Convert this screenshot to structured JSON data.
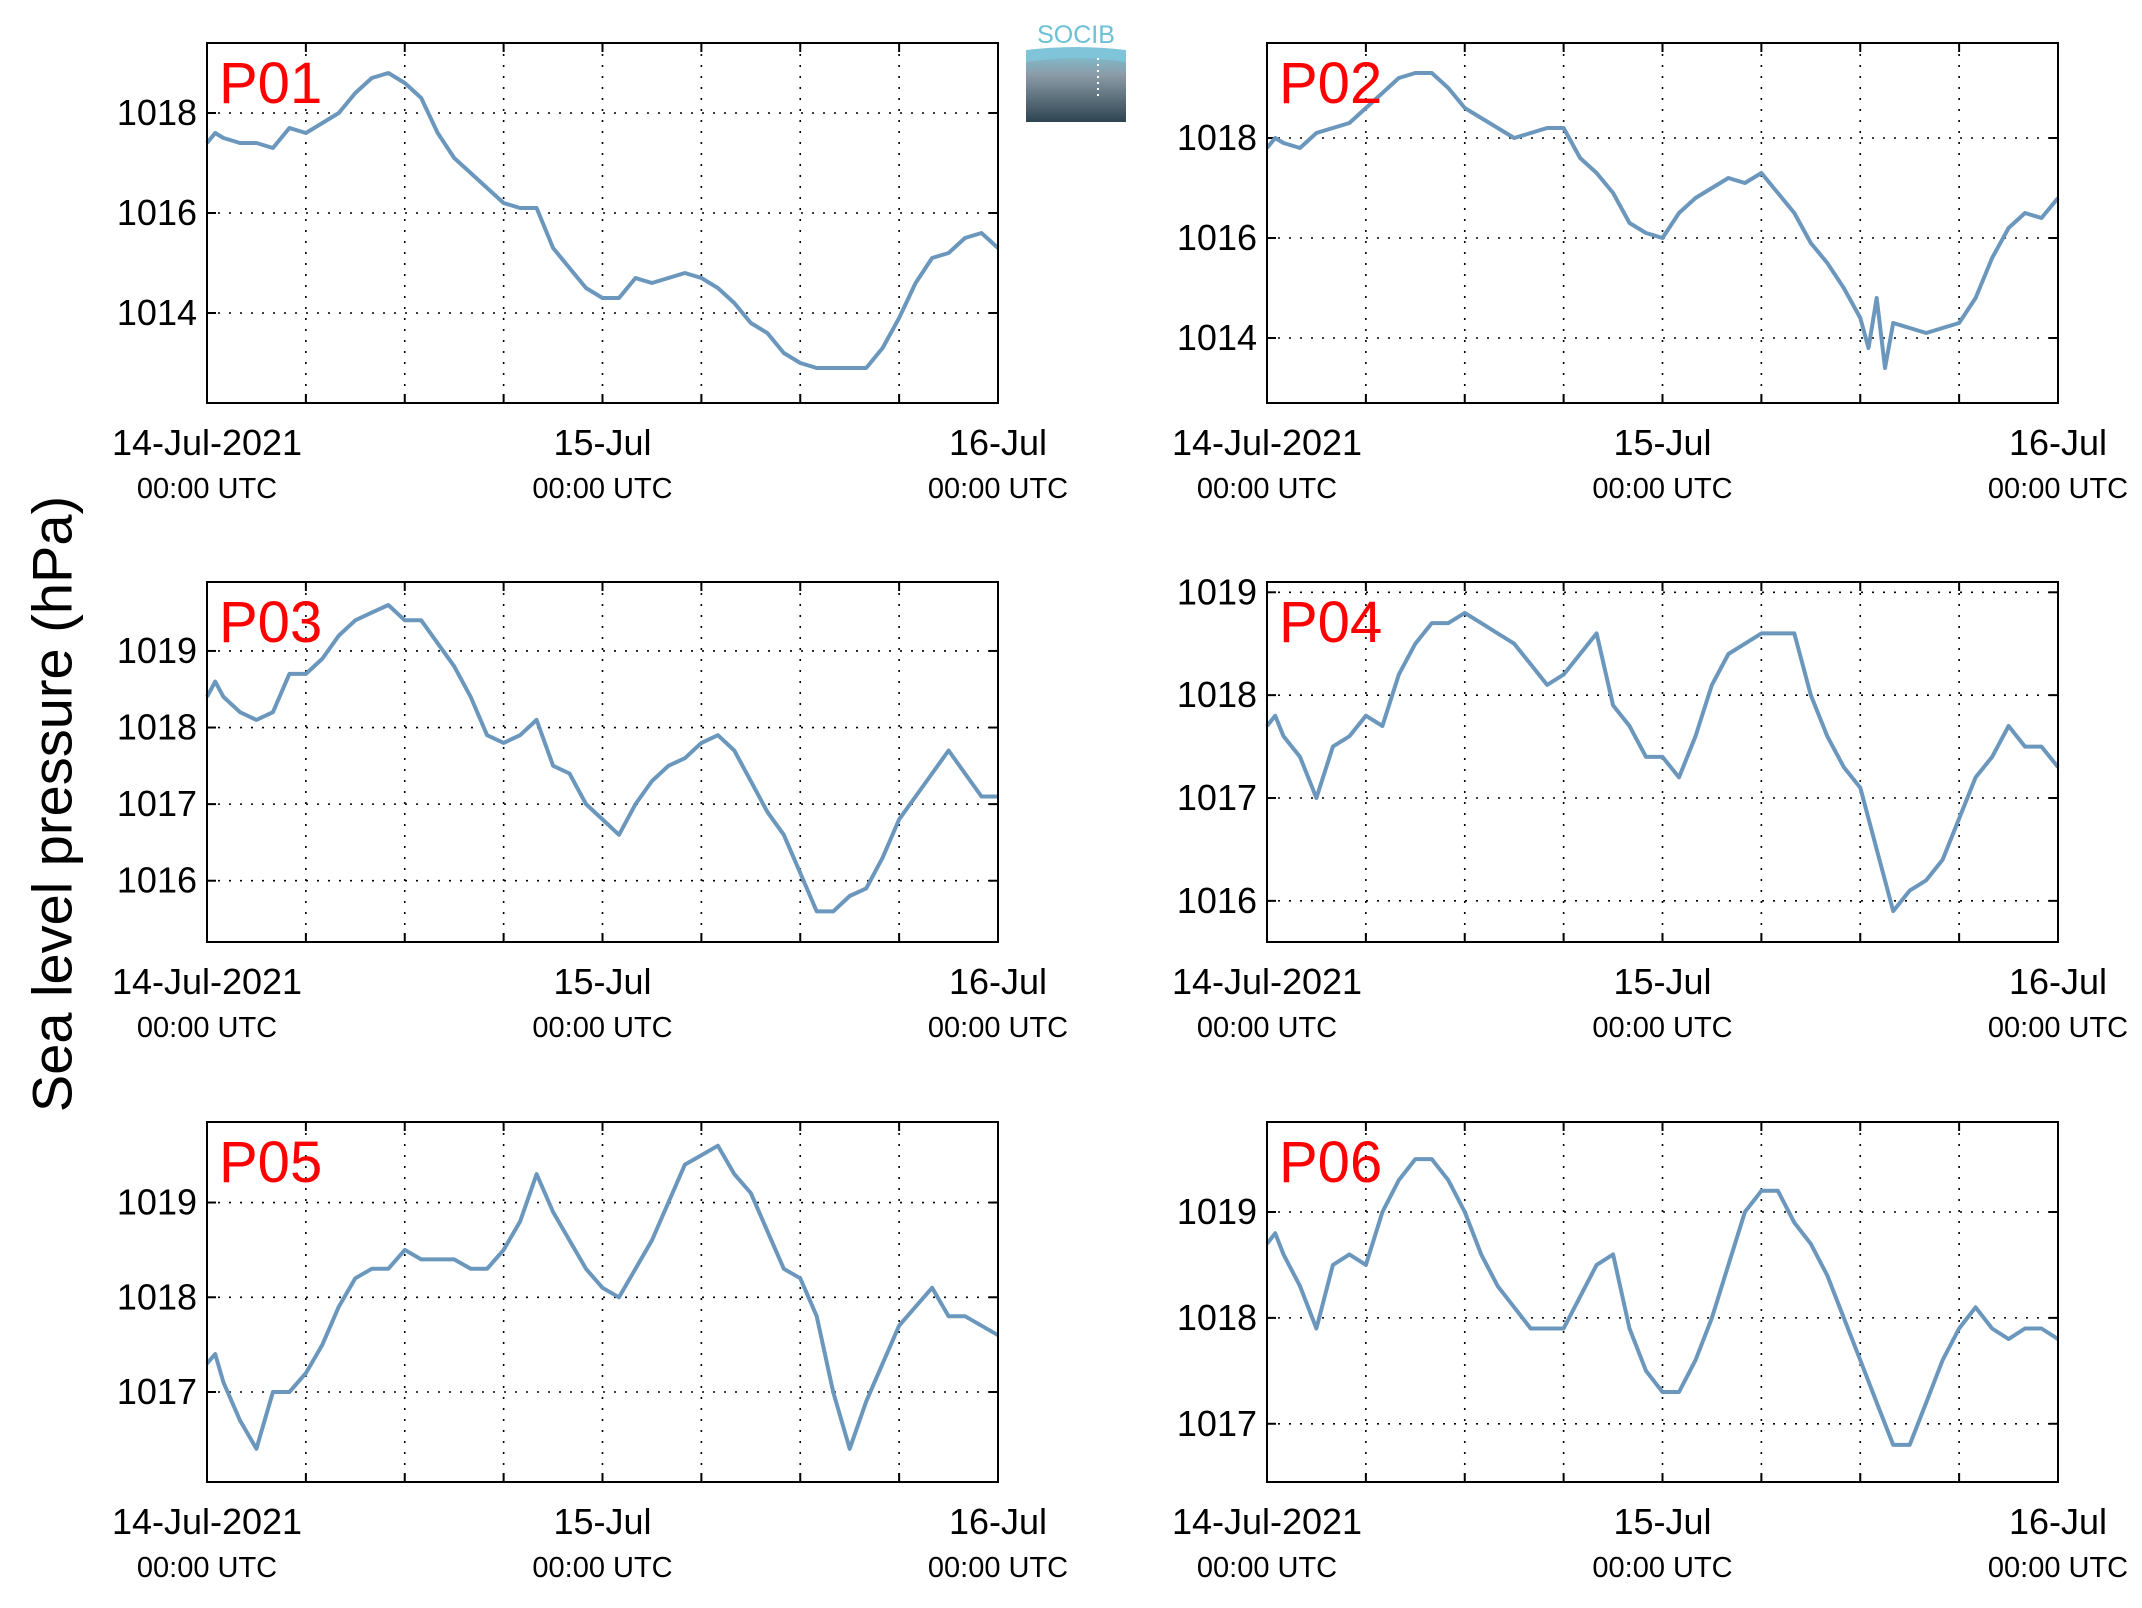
{
  "ylabel": "Sea level pressure (hPa)",
  "logo": {
    "text": "SOCIB",
    "colors": {
      "top": "#7fc4d8",
      "bottom": "#2e4451"
    }
  },
  "colors": {
    "line": "#6b97bd",
    "label": "#ff0000"
  },
  "chart_data": [
    {
      "type": "line",
      "title": "P01",
      "x_tick_labels": [
        [
          "14-Jul-2021",
          "00:00 UTC"
        ],
        [
          "15-Jul",
          "00:00 UTC"
        ],
        [
          "16-Jul",
          "00:00 UTC"
        ]
      ],
      "xlim_hours": [
        0,
        48
      ],
      "ylim": [
        1012.2,
        1019.4
      ],
      "yticks": [
        1014,
        1016,
        1018
      ],
      "grid": true,
      "series": [
        {
          "x_hours": [
            0,
            0.5,
            1,
            2,
            3,
            4,
            5,
            6,
            7,
            8,
            9,
            10,
            11,
            12,
            13,
            14,
            15,
            16,
            17,
            18,
            19,
            20,
            21,
            22,
            23,
            24,
            25,
            26,
            27,
            28,
            29,
            30,
            31,
            32,
            33,
            34,
            35,
            36,
            37,
            38,
            39,
            40,
            41,
            42,
            43,
            44,
            45,
            46,
            47,
            48
          ],
          "y": [
            1017.4,
            1017.6,
            1017.5,
            1017.4,
            1017.4,
            1017.3,
            1017.7,
            1017.6,
            1017.8,
            1018.0,
            1018.4,
            1018.7,
            1018.8,
            1018.6,
            1018.3,
            1017.6,
            1017.1,
            1016.8,
            1016.5,
            1016.2,
            1016.1,
            1016.1,
            1015.3,
            1014.9,
            1014.5,
            1014.3,
            1014.3,
            1014.7,
            1014.6,
            1014.7,
            1014.8,
            1014.7,
            1014.5,
            1014.2,
            1013.8,
            1013.6,
            1013.2,
            1013.0,
            1012.9,
            1012.9,
            1012.9,
            1012.9,
            1013.3,
            1013.9,
            1014.6,
            1015.1,
            1015.2,
            1015.5,
            1015.6,
            1015.3
          ]
        }
      ]
    },
    {
      "type": "line",
      "title": "P02",
      "x_tick_labels": [
        [
          "14-Jul-2021",
          "00:00 UTC"
        ],
        [
          "15-Jul",
          "00:00 UTC"
        ],
        [
          "16-Jul",
          "00:00 UTC"
        ]
      ],
      "xlim_hours": [
        0,
        48
      ],
      "ylim": [
        1012.7,
        1019.9
      ],
      "yticks": [
        1014,
        1016,
        1018
      ],
      "grid": true,
      "series": [
        {
          "x_hours": [
            0,
            0.5,
            1,
            2,
            3,
            4,
            5,
            6,
            7,
            8,
            9,
            10,
            11,
            12,
            13,
            14,
            15,
            16,
            17,
            18,
            19,
            20,
            21,
            22,
            23,
            24,
            25,
            26,
            27,
            28,
            29,
            30,
            31,
            32,
            33,
            34,
            35,
            36,
            36.5,
            37,
            37.5,
            38,
            39,
            40,
            41,
            42,
            43,
            44,
            45,
            46,
            47,
            48
          ],
          "y": [
            1017.8,
            1018.0,
            1017.9,
            1017.8,
            1018.1,
            1018.2,
            1018.3,
            1018.6,
            1018.9,
            1019.2,
            1019.3,
            1019.3,
            1019.0,
            1018.6,
            1018.4,
            1018.2,
            1018.0,
            1018.1,
            1018.2,
            1018.2,
            1017.6,
            1017.3,
            1016.9,
            1016.3,
            1016.1,
            1016.0,
            1016.5,
            1016.8,
            1017.0,
            1017.2,
            1017.1,
            1017.3,
            1016.9,
            1016.5,
            1015.9,
            1015.5,
            1015.0,
            1014.4,
            1013.8,
            1014.8,
            1013.4,
            1014.3,
            1014.2,
            1014.1,
            1014.2,
            1014.3,
            1014.8,
            1015.6,
            1016.2,
            1016.5,
            1016.4,
            1016.8
          ]
        }
      ]
    },
    {
      "type": "line",
      "title": "P03",
      "x_tick_labels": [
        [
          "14-Jul-2021",
          "00:00 UTC"
        ],
        [
          "15-Jul",
          "00:00 UTC"
        ],
        [
          "16-Jul",
          "00:00 UTC"
        ]
      ],
      "xlim_hours": [
        0,
        48
      ],
      "ylim": [
        1015.2,
        1019.9
      ],
      "yticks": [
        1016,
        1017,
        1018,
        1019
      ],
      "grid": true,
      "series": [
        {
          "x_hours": [
            0,
            0.5,
            1,
            2,
            3,
            4,
            5,
            6,
            7,
            8,
            9,
            10,
            11,
            12,
            13,
            14,
            15,
            16,
            17,
            18,
            19,
            20,
            21,
            22,
            23,
            24,
            25,
            26,
            27,
            28,
            29,
            30,
            31,
            32,
            33,
            34,
            35,
            36,
            37,
            38,
            39,
            40,
            41,
            42,
            43,
            44,
            45,
            46,
            47,
            48
          ],
          "y": [
            1018.4,
            1018.6,
            1018.4,
            1018.2,
            1018.1,
            1018.2,
            1018.7,
            1018.7,
            1018.9,
            1019.2,
            1019.4,
            1019.5,
            1019.6,
            1019.4,
            1019.4,
            1019.1,
            1018.8,
            1018.4,
            1017.9,
            1017.8,
            1017.9,
            1018.1,
            1017.5,
            1017.4,
            1017.0,
            1016.8,
            1016.6,
            1017.0,
            1017.3,
            1017.5,
            1017.6,
            1017.8,
            1017.9,
            1017.7,
            1017.3,
            1016.9,
            1016.6,
            1016.1,
            1015.6,
            1015.6,
            1015.8,
            1015.9,
            1016.3,
            1016.8,
            1017.1,
            1017.4,
            1017.7,
            1017.4,
            1017.1,
            1017.1
          ]
        }
      ]
    },
    {
      "type": "line",
      "title": "P04",
      "x_tick_labels": [
        [
          "14-Jul-2021",
          "00:00 UTC"
        ],
        [
          "15-Jul",
          "00:00 UTC"
        ],
        [
          "16-Jul",
          "00:00 UTC"
        ]
      ],
      "xlim_hours": [
        0,
        48
      ],
      "ylim": [
        1015.6,
        1019.1
      ],
      "yticks": [
        1016,
        1017,
        1018,
        1019
      ],
      "grid": true,
      "series": [
        {
          "x_hours": [
            0,
            0.5,
            1,
            2,
            3,
            4,
            5,
            6,
            7,
            8,
            9,
            10,
            11,
            12,
            13,
            14,
            15,
            16,
            17,
            18,
            19,
            20,
            21,
            22,
            23,
            24,
            25,
            26,
            27,
            28,
            29,
            30,
            31,
            32,
            33,
            34,
            35,
            36,
            37,
            38,
            39,
            40,
            41,
            42,
            43,
            44,
            45,
            46,
            47,
            48
          ],
          "y": [
            1017.7,
            1017.8,
            1017.6,
            1017.4,
            1017.0,
            1017.5,
            1017.6,
            1017.8,
            1017.7,
            1018.2,
            1018.5,
            1018.7,
            1018.7,
            1018.8,
            1018.7,
            1018.6,
            1018.5,
            1018.3,
            1018.1,
            1018.2,
            1018.4,
            1018.6,
            1017.9,
            1017.7,
            1017.4,
            1017.4,
            1017.2,
            1017.6,
            1018.1,
            1018.4,
            1018.5,
            1018.6,
            1018.6,
            1018.6,
            1018.0,
            1017.6,
            1017.3,
            1017.1,
            1016.5,
            1015.9,
            1016.1,
            1016.2,
            1016.4,
            1016.8,
            1017.2,
            1017.4,
            1017.7,
            1017.5,
            1017.5,
            1017.3
          ]
        }
      ]
    },
    {
      "type": "line",
      "title": "P05",
      "x_tick_labels": [
        [
          "14-Jul-2021",
          "00:00 UTC"
        ],
        [
          "15-Jul",
          "00:00 UTC"
        ],
        [
          "16-Jul",
          "00:00 UTC"
        ]
      ],
      "xlim_hours": [
        0,
        48
      ],
      "ylim": [
        1016.05,
        1019.85
      ],
      "yticks": [
        1017,
        1018,
        1019
      ],
      "grid": true,
      "series": [
        {
          "x_hours": [
            0,
            0.5,
            1,
            2,
            3,
            4,
            5,
            6,
            7,
            8,
            9,
            10,
            11,
            12,
            13,
            14,
            15,
            16,
            17,
            18,
            19,
            20,
            21,
            22,
            23,
            24,
            25,
            26,
            27,
            28,
            29,
            30,
            31,
            32,
            33,
            34,
            35,
            36,
            37,
            38,
            39,
            40,
            41,
            42,
            43,
            44,
            45,
            46,
            47,
            48
          ],
          "y": [
            1017.3,
            1017.4,
            1017.1,
            1016.7,
            1016.4,
            1017.0,
            1017.0,
            1017.2,
            1017.5,
            1017.9,
            1018.2,
            1018.3,
            1018.3,
            1018.5,
            1018.4,
            1018.4,
            1018.4,
            1018.3,
            1018.3,
            1018.5,
            1018.8,
            1019.3,
            1018.9,
            1018.6,
            1018.3,
            1018.1,
            1018.0,
            1018.3,
            1018.6,
            1019.0,
            1019.4,
            1019.5,
            1019.6,
            1019.3,
            1019.1,
            1018.7,
            1018.3,
            1018.2,
            1017.8,
            1017.0,
            1016.4,
            1016.9,
            1017.3,
            1017.7,
            1017.9,
            1018.1,
            1017.8,
            1017.8,
            1017.7,
            1017.6
          ]
        }
      ]
    },
    {
      "type": "line",
      "title": "P06",
      "x_tick_labels": [
        [
          "14-Jul-2021",
          "00:00 UTC"
        ],
        [
          "15-Jul",
          "00:00 UTC"
        ],
        [
          "16-Jul",
          "00:00 UTC"
        ]
      ],
      "xlim_hours": [
        0,
        48
      ],
      "ylim": [
        1016.45,
        1019.85
      ],
      "yticks": [
        1017,
        1018,
        1019
      ],
      "grid": true,
      "series": [
        {
          "x_hours": [
            0,
            0.5,
            1,
            2,
            3,
            4,
            5,
            6,
            7,
            8,
            9,
            10,
            11,
            12,
            13,
            14,
            15,
            16,
            17,
            18,
            19,
            20,
            21,
            22,
            23,
            24,
            25,
            26,
            27,
            28,
            29,
            30,
            31,
            32,
            33,
            34,
            35,
            36,
            37,
            38,
            39,
            40,
            41,
            42,
            43,
            44,
            45,
            46,
            47,
            48
          ],
          "y": [
            1018.7,
            1018.8,
            1018.6,
            1018.3,
            1017.9,
            1018.5,
            1018.6,
            1018.5,
            1019.0,
            1019.3,
            1019.5,
            1019.5,
            1019.3,
            1019.0,
            1018.6,
            1018.3,
            1018.1,
            1017.9,
            1017.9,
            1017.9,
            1018.2,
            1018.5,
            1018.6,
            1017.9,
            1017.5,
            1017.3,
            1017.3,
            1017.6,
            1018.0,
            1018.5,
            1019.0,
            1019.2,
            1019.2,
            1018.9,
            1018.7,
            1018.4,
            1018.0,
            1017.6,
            1017.2,
            1016.8,
            1016.8,
            1017.2,
            1017.6,
            1017.9,
            1018.1,
            1017.9,
            1017.8,
            1017.9,
            1017.9,
            1017.8
          ]
        }
      ]
    }
  ]
}
